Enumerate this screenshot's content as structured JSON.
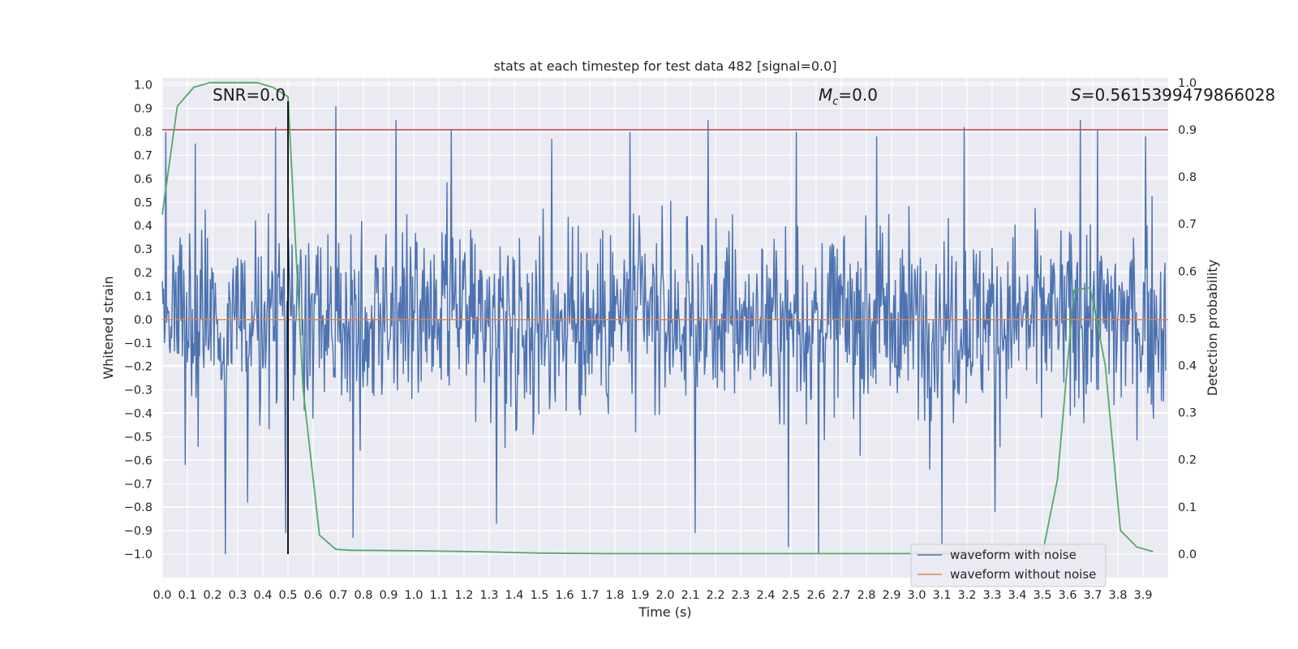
{
  "chart_data": {
    "type": "line",
    "title": "stats at each timestep for test data 482 [signal=0.0]",
    "xlabel": "Time (s)",
    "ylabel": "Whitened strain",
    "y2label": "Detection probability",
    "xlim": [
      0.0,
      4.0
    ],
    "ylim": [
      -1.1,
      1.03
    ],
    "y2lim": [
      -0.05,
      1.01
    ],
    "x_ticks": [
      0.0,
      0.1,
      0.2,
      0.3,
      0.4,
      0.5,
      0.6,
      0.7,
      0.8,
      0.9,
      1.0,
      1.1,
      1.2,
      1.3,
      1.4,
      1.5,
      1.6,
      1.7,
      1.8,
      1.9,
      2.0,
      2.1,
      2.2,
      2.3,
      2.4,
      2.5,
      2.6,
      2.7,
      2.8,
      2.9,
      3.0,
      3.1,
      3.2,
      3.3,
      3.4,
      3.5,
      3.6,
      3.7,
      3.8,
      3.9
    ],
    "x_tick_labels": [
      "0.0",
      "0.1",
      "0.2",
      "0.3",
      "0.4",
      "0.5",
      "0.6",
      "0.7",
      "0.8",
      "0.9",
      "1.0",
      "1.1",
      "1.2",
      "1.3",
      "1.4",
      "1.5",
      "1.6",
      "1.7",
      "1.8",
      "1.9",
      "2.0",
      "2.1",
      "2.2",
      "2.3",
      "2.4",
      "2.5",
      "2.6",
      "2.7",
      "2.8",
      "2.9",
      "3.0",
      "3.1",
      "3.2",
      "3.3",
      "3.4",
      "3.5",
      "3.6",
      "3.7",
      "3.8",
      "3.9"
    ],
    "y_ticks": [
      1.0,
      0.9,
      0.8,
      0.7,
      0.6,
      0.5,
      0.4,
      0.3,
      0.2,
      0.1,
      0.0,
      -0.1,
      -0.2,
      -0.3,
      -0.4,
      -0.5,
      -0.6,
      -0.7,
      -0.8,
      -0.9,
      -1.0
    ],
    "y_tick_labels": [
      "1.0",
      "0.9",
      "0.8",
      "0.7",
      "0.6",
      "0.5",
      "0.4",
      "0.3",
      "0.2",
      "0.1",
      "0.0",
      "−0.1",
      "−0.2",
      "−0.3",
      "−0.4",
      "−0.5",
      "−0.6",
      "−0.7",
      "−0.8",
      "−0.9",
      "−1.0"
    ],
    "y2_ticks": [
      1.0,
      0.9,
      0.8,
      0.7,
      0.6,
      0.5,
      0.4,
      0.3,
      0.2,
      0.1,
      0.0
    ],
    "y2_tick_labels": [
      "1.0",
      "0.9",
      "0.8",
      "0.7",
      "0.6",
      "0.5",
      "0.4",
      "0.3",
      "0.2",
      "0.1",
      "0.0"
    ],
    "grid": true,
    "legend_position": "bottom-right",
    "series": [
      {
        "name": "waveform with noise",
        "axis": "left",
        "color": "#4c72b0",
        "description_values": "dense noise trace, amplitude about ±0.5 with spikes to ±1.0",
        "spikes": [
          {
            "x": 0.015,
            "y": 0.8
          },
          {
            "x": 0.09,
            "y": -0.62
          },
          {
            "x": 0.13,
            "y": 0.75
          },
          {
            "x": 0.25,
            "y": -1.0
          },
          {
            "x": 0.34,
            "y": -0.78
          },
          {
            "x": 0.45,
            "y": 0.82
          },
          {
            "x": 0.49,
            "y": -0.91
          },
          {
            "x": 0.69,
            "y": 0.91
          },
          {
            "x": 0.76,
            "y": -0.93
          },
          {
            "x": 0.93,
            "y": 0.85
          },
          {
            "x": 1.15,
            "y": 0.81
          },
          {
            "x": 1.33,
            "y": -0.87
          },
          {
            "x": 1.55,
            "y": 0.77
          },
          {
            "x": 1.86,
            "y": 0.8
          },
          {
            "x": 2.12,
            "y": -0.91
          },
          {
            "x": 2.17,
            "y": 0.85
          },
          {
            "x": 2.49,
            "y": -0.97
          },
          {
            "x": 2.52,
            "y": 0.8
          },
          {
            "x": 2.61,
            "y": -1.0
          },
          {
            "x": 2.84,
            "y": 0.78
          },
          {
            "x": 3.1,
            "y": -0.96
          },
          {
            "x": 3.19,
            "y": 0.82
          },
          {
            "x": 3.31,
            "y": -0.82
          },
          {
            "x": 3.65,
            "y": 0.85
          },
          {
            "x": 3.72,
            "y": 0.81
          },
          {
            "x": 3.91,
            "y": 0.78
          }
        ]
      },
      {
        "name": "waveform without noise",
        "axis": "left",
        "color": "#dd8452",
        "x": [
          0.0,
          4.0
        ],
        "y": [
          0.0,
          0.0
        ]
      },
      {
        "name": "",
        "axis": "right",
        "color": "#55a868",
        "x": [
          0.0,
          0.06,
          0.125,
          0.19,
          0.25,
          0.31,
          0.375,
          0.44,
          0.5,
          0.56,
          0.625,
          0.69,
          0.75,
          1.0,
          1.25,
          1.5,
          1.75,
          2.0,
          2.5,
          3.0,
          3.25,
          3.5,
          3.56,
          3.625,
          3.69,
          3.75,
          3.81,
          3.875,
          3.94
        ],
        "y": [
          0.72,
          0.95,
          0.99,
          1.0,
          1.0,
          1.0,
          1.0,
          0.99,
          0.97,
          0.35,
          0.04,
          0.01,
          0.008,
          0.007,
          0.005,
          0.002,
          0.001,
          0.001,
          0.001,
          0.001,
          0.001,
          0.0,
          0.16,
          0.56,
          0.565,
          0.4,
          0.05,
          0.015,
          0.005
        ]
      },
      {
        "name": "",
        "axis": "right",
        "color": "#c44e52",
        "x": [
          0.0,
          4.0
        ],
        "y": [
          0.9,
          0.9
        ]
      }
    ],
    "vertical_marker": {
      "x": 0.5,
      "color": "#000000",
      "y_from": -1.0,
      "y_to": 0.93
    },
    "annotations": {
      "snr": "SNR=0.0",
      "mc_symbol": "M",
      "mc_subscript": "c",
      "mc_value": "=0.0",
      "s_symbol": "S",
      "s_value": "=0.5615399479866028"
    },
    "legend": [
      "waveform with noise",
      "waveform without noise"
    ]
  }
}
